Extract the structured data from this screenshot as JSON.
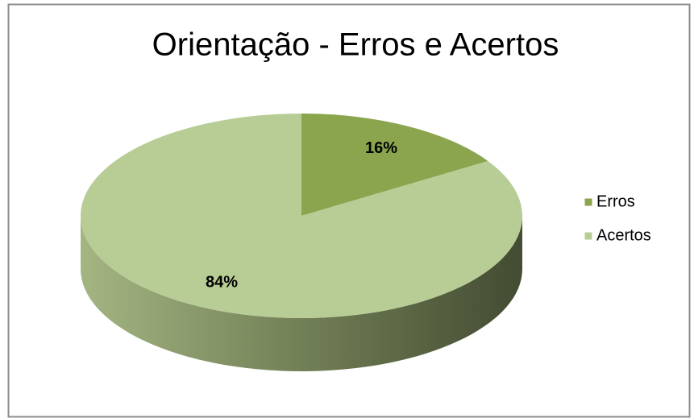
{
  "chart_data": {
    "type": "pie",
    "title": "Orientação - Erros e Acertos",
    "categories": [
      "Erros",
      "Acertos"
    ],
    "values": [
      16,
      84
    ],
    "value_labels": [
      "16%",
      "84%"
    ],
    "colors": [
      "#8aa54e",
      "#b8cd95"
    ],
    "legend": "right"
  }
}
